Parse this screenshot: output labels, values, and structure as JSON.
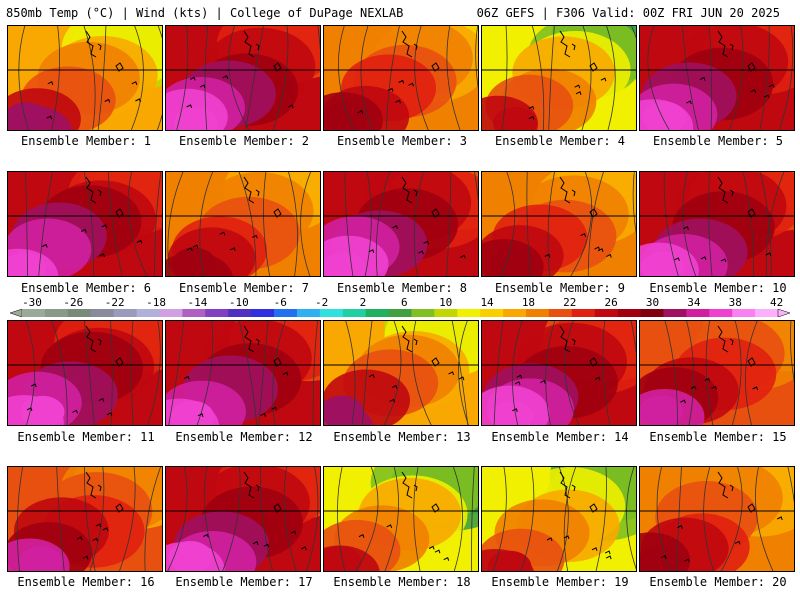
{
  "header": {
    "left": "850mb Temp (°C) | Wind (kts) | College of DuPage NEXLAB",
    "right": "06Z GEFS | F306 Valid: 00Z FRI JUN 20 2025"
  },
  "colorbar": {
    "labels": [
      "-30",
      "-26",
      "-22",
      "-18",
      "-14",
      "-10",
      "-6",
      "-2",
      "2",
      "6",
      "10",
      "14",
      "18",
      "22",
      "26",
      "30",
      "34",
      "38",
      "42"
    ],
    "colors": [
      "#9aaa9a",
      "#8a9a8a",
      "#7a8a7a",
      "#8a8a9a",
      "#9a9aba",
      "#b0b0d8",
      "#d0a0e0",
      "#b060c0",
      "#8040c0",
      "#5030c0",
      "#3030e0",
      "#2070f0",
      "#30b0f0",
      "#30e0e0",
      "#20d0a0",
      "#20b060",
      "#40a040",
      "#80c020",
      "#c0d800",
      "#f0f000",
      "#f8d000",
      "#f8a800",
      "#f08000",
      "#e85010",
      "#e02010",
      "#c00810",
      "#a00010",
      "#800010",
      "#a01060",
      "#d020a0",
      "#f040d0",
      "#f880f0",
      "#fcb0fc"
    ]
  },
  "members": [
    {
      "label": "Ensemble Member: 1",
      "palette": "green_top"
    },
    {
      "label": "Ensemble Member: 2",
      "palette": "hot_magenta"
    },
    {
      "label": "Ensemble Member: 3",
      "palette": "yellow_cool"
    },
    {
      "label": "Ensemble Member: 4",
      "palette": "cyan_top"
    },
    {
      "label": "Ensemble Member: 5",
      "palette": "hot_magenta"
    },
    {
      "label": "Ensemble Member: 6",
      "palette": "hot_magenta"
    },
    {
      "label": "Ensemble Member: 7",
      "palette": "warm_mild"
    },
    {
      "label": "Ensemble Member: 8",
      "palette": "hot_magenta"
    },
    {
      "label": "Ensemble Member: 9",
      "palette": "warm_mild"
    },
    {
      "label": "Ensemble Member: 10",
      "palette": "hot_magenta"
    },
    {
      "label": "Ensemble Member: 11",
      "palette": "hot_magenta"
    },
    {
      "label": "Ensemble Member: 12",
      "palette": "hot_magenta"
    },
    {
      "label": "Ensemble Member: 13",
      "palette": "green_top"
    },
    {
      "label": "Ensemble Member: 14",
      "palette": "hot_magenta"
    },
    {
      "label": "Ensemble Member: 15",
      "palette": "hot_red"
    },
    {
      "label": "Ensemble Member: 16",
      "palette": "hot_red"
    },
    {
      "label": "Ensemble Member: 17",
      "palette": "hot_magenta"
    },
    {
      "label": "Ensemble Member: 18",
      "palette": "cyan_top"
    },
    {
      "label": "Ensemble Member: 19",
      "palette": "cyan_top"
    },
    {
      "label": "Ensemble Member: 20",
      "palette": "warm_mild"
    }
  ]
}
